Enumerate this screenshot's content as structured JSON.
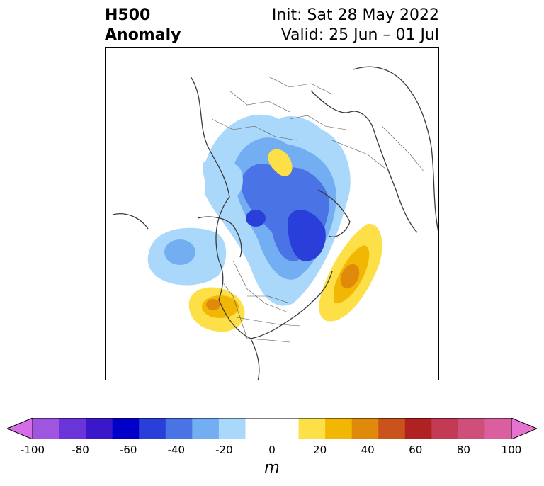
{
  "header": {
    "left_line1": "H500",
    "left_line2": "Anomaly",
    "right_line1": "Init: Sat 28 May 2022",
    "right_line2": "Valid: 25 Jun – 01 Jul"
  },
  "colorbar": {
    "unit": "m",
    "ticks": [
      "-100",
      "-80",
      "-60",
      "-40",
      "-20",
      "0",
      "20",
      "40",
      "60",
      "80",
      "100"
    ],
    "colors": [
      "#d56ee6",
      "#9e55e0",
      "#6a34d8",
      "#3a18c9",
      "#0000c8",
      "#2a3fd9",
      "#4a74e6",
      "#73aef3",
      "#aad8fb",
      "#ffffff",
      "#ffffff",
      "#fde047",
      "#f2b705",
      "#e08a0b",
      "#c9531a",
      "#b02222",
      "#c33a55",
      "#cf4f7b",
      "#da5f9f",
      "#e672cf"
    ]
  },
  "map": {
    "anomalies": [
      {
        "label": "negative-pole",
        "sign": "negative"
      },
      {
        "label": "pacific-trough",
        "sign": "negative"
      },
      {
        "label": "atlantic-ridge",
        "sign": "positive"
      },
      {
        "label": "west-us-ridge",
        "sign": "positive"
      },
      {
        "label": "siberia-ridge",
        "sign": "positive"
      },
      {
        "label": "asia-low",
        "sign": "negative"
      }
    ]
  }
}
